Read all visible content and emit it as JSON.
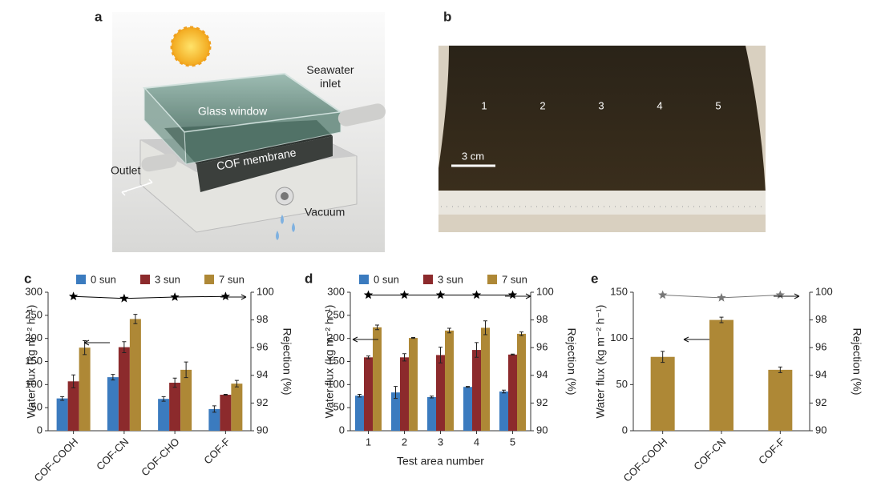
{
  "panel_labels": [
    "a",
    "b",
    "c",
    "d",
    "e"
  ],
  "illustration": {
    "labels": [
      "Seawater inlet",
      "Glass window",
      "COF membrane",
      "Outlet",
      "Vacuum"
    ]
  },
  "photo": {
    "area_labels": [
      "1",
      "2",
      "3",
      "4",
      "5"
    ],
    "scale_bar": "3 cm"
  },
  "chart_data": [
    {
      "type": "bar",
      "categories": [
        "COF-COOH",
        "COF-CN",
        "COF-CHO",
        "COF-F"
      ],
      "y_label": "Water flux (kg m⁻² h⁻¹)",
      "y2_label": "Rejection (%)",
      "ylim": [
        0,
        300
      ],
      "yticks": [
        0,
        50,
        100,
        150,
        200,
        250,
        300
      ],
      "y2lim": [
        90,
        100
      ],
      "y2ticks": [
        90,
        92,
        94,
        96,
        98,
        100
      ],
      "series": [
        {
          "name": "0 sun",
          "color": "#3b7bbf",
          "values": [
            70,
            116,
            69,
            47
          ],
          "errors": [
            4,
            6,
            5,
            7
          ]
        },
        {
          "name": "3 sun",
          "color": "#8c2a2c",
          "values": [
            107,
            181,
            104,
            78
          ],
          "errors": [
            14,
            12,
            10,
            1
          ]
        },
        {
          "name": "7 sun",
          "color": "#ae8836",
          "values": [
            180,
            242,
            132,
            102
          ],
          "errors": [
            15,
            10,
            17,
            7
          ]
        },
        {
          "axis": "y2",
          "marker": "star",
          "color": "#000000",
          "values": [
            99.7,
            99.55,
            99.65,
            99.7
          ]
        }
      ]
    },
    {
      "type": "bar",
      "categories": [
        "1",
        "2",
        "3",
        "4",
        "5"
      ],
      "x_label": "Test area number",
      "y_label": "Water flux (kg m⁻² h⁻¹)",
      "y2_label": "Rejection (%)",
      "ylim": [
        0,
        300
      ],
      "yticks": [
        0,
        50,
        100,
        150,
        200,
        250,
        300
      ],
      "y2lim": [
        90,
        100
      ],
      "y2ticks": [
        90,
        92,
        94,
        96,
        98,
        100
      ],
      "series": [
        {
          "name": "0 sun",
          "color": "#3b7bbf",
          "values": [
            76,
            83,
            73,
            95,
            85
          ],
          "errors": [
            3,
            13,
            2,
            1,
            3
          ]
        },
        {
          "name": "3 sun",
          "color": "#8c2a2c",
          "values": [
            159,
            159,
            164,
            175,
            165
          ],
          "errors": [
            3,
            8,
            17,
            16,
            1
          ]
        },
        {
          "name": "7 sun",
          "color": "#ae8836",
          "values": [
            224,
            201,
            217,
            223,
            210
          ],
          "errors": [
            5,
            1,
            5,
            15,
            4
          ]
        },
        {
          "axis": "y2",
          "marker": "star",
          "color": "#000000",
          "values": [
            99.8,
            99.8,
            99.8,
            99.8,
            99.8
          ]
        }
      ]
    },
    {
      "type": "bar",
      "categories": [
        "COF-COOH",
        "COF-CN",
        "COF-F"
      ],
      "y_label": "Water flux (kg m⁻² h⁻¹)",
      "y2_label": "Rejection (%)",
      "ylim": [
        0,
        150
      ],
      "yticks": [
        0,
        50,
        100,
        150
      ],
      "y2lim": [
        90,
        100
      ],
      "y2ticks": [
        90,
        92,
        94,
        96,
        98,
        100
      ],
      "series": [
        {
          "color": "#ae8836",
          "values": [
            80,
            120,
            66
          ],
          "errors": [
            6,
            3,
            3
          ]
        },
        {
          "axis": "y2",
          "marker": "star",
          "color": "#777777",
          "values": [
            99.8,
            99.6,
            99.8
          ]
        }
      ]
    }
  ]
}
